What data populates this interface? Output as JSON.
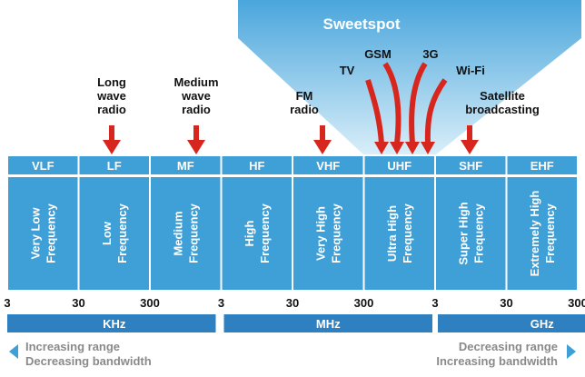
{
  "title": "Sweetspot",
  "bands": [
    {
      "abbr": "VLF",
      "name": [
        "Very Low",
        "Frequency"
      ]
    },
    {
      "abbr": "LF",
      "name": [
        "Low",
        "Frequency"
      ]
    },
    {
      "abbr": "MF",
      "name": [
        "Medium",
        "Frequency"
      ]
    },
    {
      "abbr": "HF",
      "name": [
        "High",
        "Frequency"
      ]
    },
    {
      "abbr": "VHF",
      "name": [
        "Very High",
        "Frequency"
      ]
    },
    {
      "abbr": "UHF",
      "name": [
        "Ultra High",
        "Frequency"
      ]
    },
    {
      "abbr": "SHF",
      "name": [
        "Super High",
        "Frequency"
      ]
    },
    {
      "abbr": "EHF",
      "name": [
        "Extremely High",
        "Frequency"
      ]
    }
  ],
  "applications": [
    {
      "label": [
        "Long",
        "wave",
        "radio"
      ]
    },
    {
      "label": [
        "Medium",
        "wave",
        "radio"
      ]
    },
    {
      "label": [
        "FM",
        "radio"
      ]
    },
    {
      "label": [
        "Satellite",
        "broadcasting"
      ]
    }
  ],
  "sweetspot_apps": [
    "TV",
    "GSM",
    "3G",
    "Wi-Fi"
  ],
  "scale": [
    3,
    30,
    300,
    3,
    30,
    300,
    3,
    30,
    300
  ],
  "units": [
    "KHz",
    "MHz",
    "GHz"
  ],
  "left_note": [
    "Increasing range",
    "Decreasing bandwidth"
  ],
  "right_note": [
    "Decreasing range",
    "Increasing bandwidth"
  ]
}
